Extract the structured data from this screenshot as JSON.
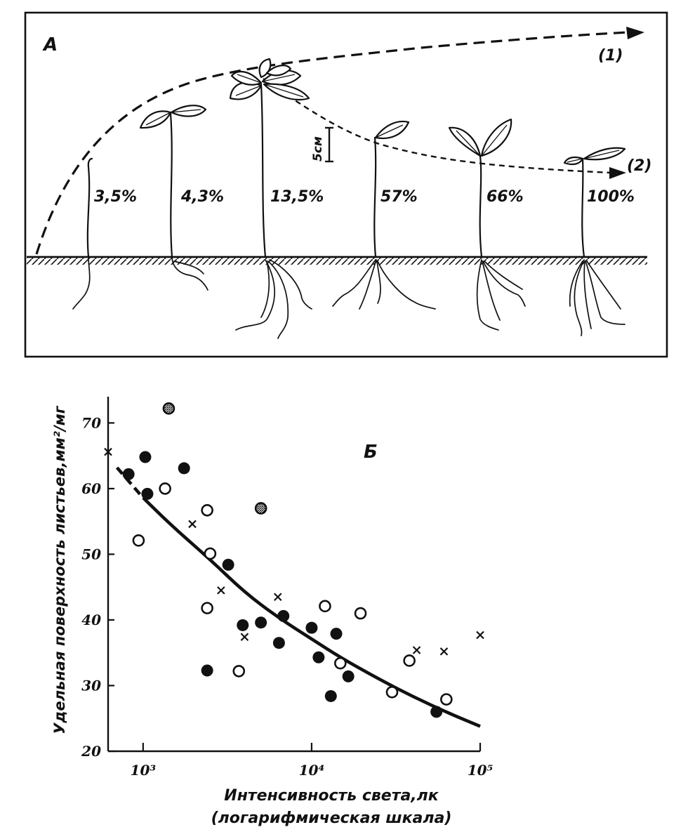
{
  "panel_a": {
    "label": "А",
    "scale_label": "5см",
    "curve_labels": [
      "(1)",
      "(2)"
    ],
    "plants": [
      {
        "percent": "3,5%"
      },
      {
        "percent": "4,3%"
      },
      {
        "percent": "13,5%"
      },
      {
        "percent": "57%"
      },
      {
        "percent": "66%"
      },
      {
        "percent": "100%"
      }
    ]
  },
  "chart_data": {
    "type": "scatter",
    "panel_label": "Б",
    "xlabel_line1": "Интенсивность света,лк",
    "xlabel_line2": "(логарифмическая шкала)",
    "ylabel": "Удельная поверхность листьев,мм²/мг",
    "xscale": "log",
    "xlim": [
      620,
      100000
    ],
    "ylim": [
      20,
      74
    ],
    "x_ticks": [
      {
        "value": 1000,
        "label": "10³"
      },
      {
        "value": 10000,
        "label": "10⁴"
      },
      {
        "value": 100000,
        "label": "10⁵"
      }
    ],
    "y_ticks": [
      {
        "value": 20,
        "label": "20"
      },
      {
        "value": 30,
        "label": "30"
      },
      {
        "value": 40,
        "label": "40"
      },
      {
        "value": 50,
        "label": "50"
      },
      {
        "value": 60,
        "label": "60"
      },
      {
        "value": 70,
        "label": "70"
      }
    ],
    "grid": false,
    "series": [
      {
        "marker": "filled-circle",
        "points": [
          [
            820,
            62.2
          ],
          [
            1030,
            64.8
          ],
          [
            1060,
            59.2
          ],
          [
            1750,
            63.1
          ],
          [
            2400,
            32.3
          ],
          [
            3200,
            48.4
          ],
          [
            3900,
            39.2
          ],
          [
            5000,
            39.6
          ],
          [
            6400,
            36.5
          ],
          [
            6800,
            40.6
          ],
          [
            10000,
            38.8
          ],
          [
            11000,
            34.3
          ],
          [
            13000,
            28.4
          ],
          [
            14000,
            37.9
          ],
          [
            16500,
            31.4
          ],
          [
            55000,
            26.0
          ]
        ]
      },
      {
        "marker": "open-circle",
        "points": [
          [
            940,
            52.1
          ],
          [
            1350,
            60.0
          ],
          [
            2400,
            56.7
          ],
          [
            2500,
            50.1
          ],
          [
            2400,
            41.8
          ],
          [
            3700,
            32.2
          ],
          [
            12000,
            42.1
          ],
          [
            14800,
            33.4
          ],
          [
            19500,
            41.0
          ],
          [
            30000,
            29.0
          ],
          [
            38000,
            33.8
          ],
          [
            63000,
            27.9
          ]
        ]
      },
      {
        "marker": "hatched-circle",
        "points": [
          [
            1420,
            72.2
          ],
          [
            5000,
            57.0
          ]
        ]
      },
      {
        "marker": "cross",
        "points": [
          [
            620,
            65.6
          ],
          [
            1960,
            54.6
          ],
          [
            2900,
            44.5
          ],
          [
            4000,
            37.4
          ],
          [
            6300,
            43.5
          ],
          [
            42000,
            35.4
          ],
          [
            61000,
            35.2
          ],
          [
            100000,
            37.7
          ]
        ]
      }
    ],
    "fit_line": {
      "style": "solid with dashed start",
      "points": [
        [
          700,
          63.2
        ],
        [
          1000,
          58.6
        ],
        [
          1500,
          54.2
        ],
        [
          2500,
          49.2
        ],
        [
          4000,
          44.2
        ],
        [
          6300,
          40.4
        ],
        [
          10000,
          37.1
        ],
        [
          15000,
          34.2
        ],
        [
          25000,
          31.0
        ],
        [
          40000,
          28.3
        ],
        [
          65000,
          25.8
        ],
        [
          100000,
          23.8
        ]
      ]
    }
  }
}
